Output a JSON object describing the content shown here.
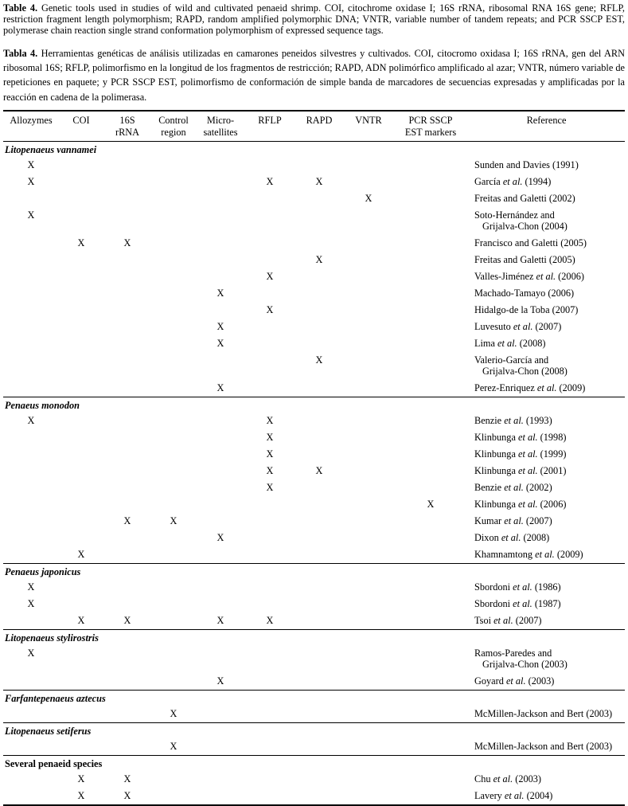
{
  "caption_en": {
    "label": "Table 4.",
    "text": "Genetic tools used in studies of wild and cultivated penaeid shrimp. COI, citochrome oxidase I; 16S rRNA, ribosomal RNA 16S gene; RFLP, restriction fragment length polymorphism; RAPD, random amplified polymorphic DNA; VNTR, variable number of tandem repeats; and PCR SSCP EST, polymerase chain reaction single strand conformation polymorphism of expressed sequence tags."
  },
  "caption_es": {
    "label": "Tabla 4.",
    "text": "Herramientas genéticas de análisis utilizadas en camarones peneidos silvestres y cultivados. COI, citocromo oxidasa I; 16S rRNA, gen del ARN ribosomal 16S; RFLP, polimorfismo en la longitud de los fragmentos de restricción; RAPD, ADN polimórfico amplificado al azar; VNTR, número variable de repeticiones en paquete; y PCR SSCP EST, polimorfismo de conformación de simple banda de marcadores de secuencias expresadas y amplificadas por la reacción en cadena de la polimerasa."
  },
  "table": {
    "mark": "X",
    "columns": [
      "Allozymes",
      "COI",
      "16S\nrRNA",
      "Control\nregion",
      "Micro-\nsatellites",
      "RFLP",
      "RAPD",
      "VNTR",
      "PCR SSCP\nEST markers",
      "Reference"
    ],
    "groups": [
      {
        "species": "Litopenaeus vannamei",
        "italic": true,
        "rows": [
          {
            "x": [
              0
            ],
            "ref": "Sunden and Davies (1991)"
          },
          {
            "x": [
              0,
              5,
              6
            ],
            "ref": "García et al. (1994)"
          },
          {
            "x": [
              7
            ],
            "ref": "Freitas and Galetti (2002)"
          },
          {
            "x": [
              0
            ],
            "ref": "Soto-Hernández and",
            "ref2": "Grijalva-Chon (2004)"
          },
          {
            "x": [
              1,
              2
            ],
            "ref": "Francisco and Galetti (2005)"
          },
          {
            "x": [
              6
            ],
            "ref": "Freitas and Galetti (2005)"
          },
          {
            "x": [
              5
            ],
            "ref": "Valles-Jiménez et al. (2006)"
          },
          {
            "x": [
              4
            ],
            "ref": "Machado-Tamayo (2006)"
          },
          {
            "x": [
              5
            ],
            "ref": "Hidalgo-de la Toba (2007)"
          },
          {
            "x": [
              4
            ],
            "ref": "Luvesuto et al. (2007)"
          },
          {
            "x": [
              4
            ],
            "ref": "Lima et al. (2008)"
          },
          {
            "x": [
              6
            ],
            "ref": "Valerio-García and",
            "ref2": "Grijalva-Chon (2008)"
          },
          {
            "x": [
              4
            ],
            "ref": "Perez-Enriquez et al. (2009)"
          }
        ]
      },
      {
        "species": "Penaeus monodon",
        "italic": true,
        "rows": [
          {
            "x": [
              0,
              5
            ],
            "ref": "Benzie et al. (1993)"
          },
          {
            "x": [
              5
            ],
            "ref": "Klinbunga et al. (1998)"
          },
          {
            "x": [
              5
            ],
            "ref": "Klinbunga et al. (1999)"
          },
          {
            "x": [
              5,
              6
            ],
            "ref": "Klinbunga et al. (2001)"
          },
          {
            "x": [
              5
            ],
            "ref": "Benzie et al. (2002)"
          },
          {
            "x": [
              8
            ],
            "ref": "Klinbunga et al. (2006)"
          },
          {
            "x": [
              2,
              3
            ],
            "ref": "Kumar et al. (2007)"
          },
          {
            "x": [
              4
            ],
            "ref": "Dixon et al. (2008)"
          },
          {
            "x": [
              1
            ],
            "ref": "Khamnamtong et al. (2009)"
          }
        ]
      },
      {
        "species": "Penaeus japonicus",
        "italic": true,
        "rows": [
          {
            "x": [
              0
            ],
            "ref": "Sbordoni et al. (1986)"
          },
          {
            "x": [
              0
            ],
            "ref": "Sbordoni et al. (1987)"
          },
          {
            "x": [
              1,
              2,
              4,
              5
            ],
            "ref": "Tsoi et al. (2007)"
          }
        ]
      },
      {
        "species": "Litopenaeus stylirostris",
        "italic": true,
        "rows": [
          {
            "x": [
              0
            ],
            "ref": "Ramos-Paredes and",
            "ref2": "Grijalva-Chon (2003)"
          },
          {
            "x": [
              4
            ],
            "ref": "Goyard et al. (2003)"
          }
        ]
      },
      {
        "species": "Farfantepenaeus aztecus",
        "italic": true,
        "rows": [
          {
            "x": [
              3
            ],
            "ref": "McMillen-Jackson and Bert (2003)"
          }
        ]
      },
      {
        "species": "Litopenaeus setiferus",
        "italic": true,
        "rows": [
          {
            "x": [
              3
            ],
            "ref": "McMillen-Jackson and Bert (2003)"
          }
        ]
      },
      {
        "species": "Several penaeid species",
        "italic": false,
        "rows": [
          {
            "x": [
              1,
              2
            ],
            "ref": "Chu et al. (2003)"
          },
          {
            "x": [
              1,
              2
            ],
            "ref": "Lavery et al. (2004)"
          }
        ]
      }
    ]
  }
}
